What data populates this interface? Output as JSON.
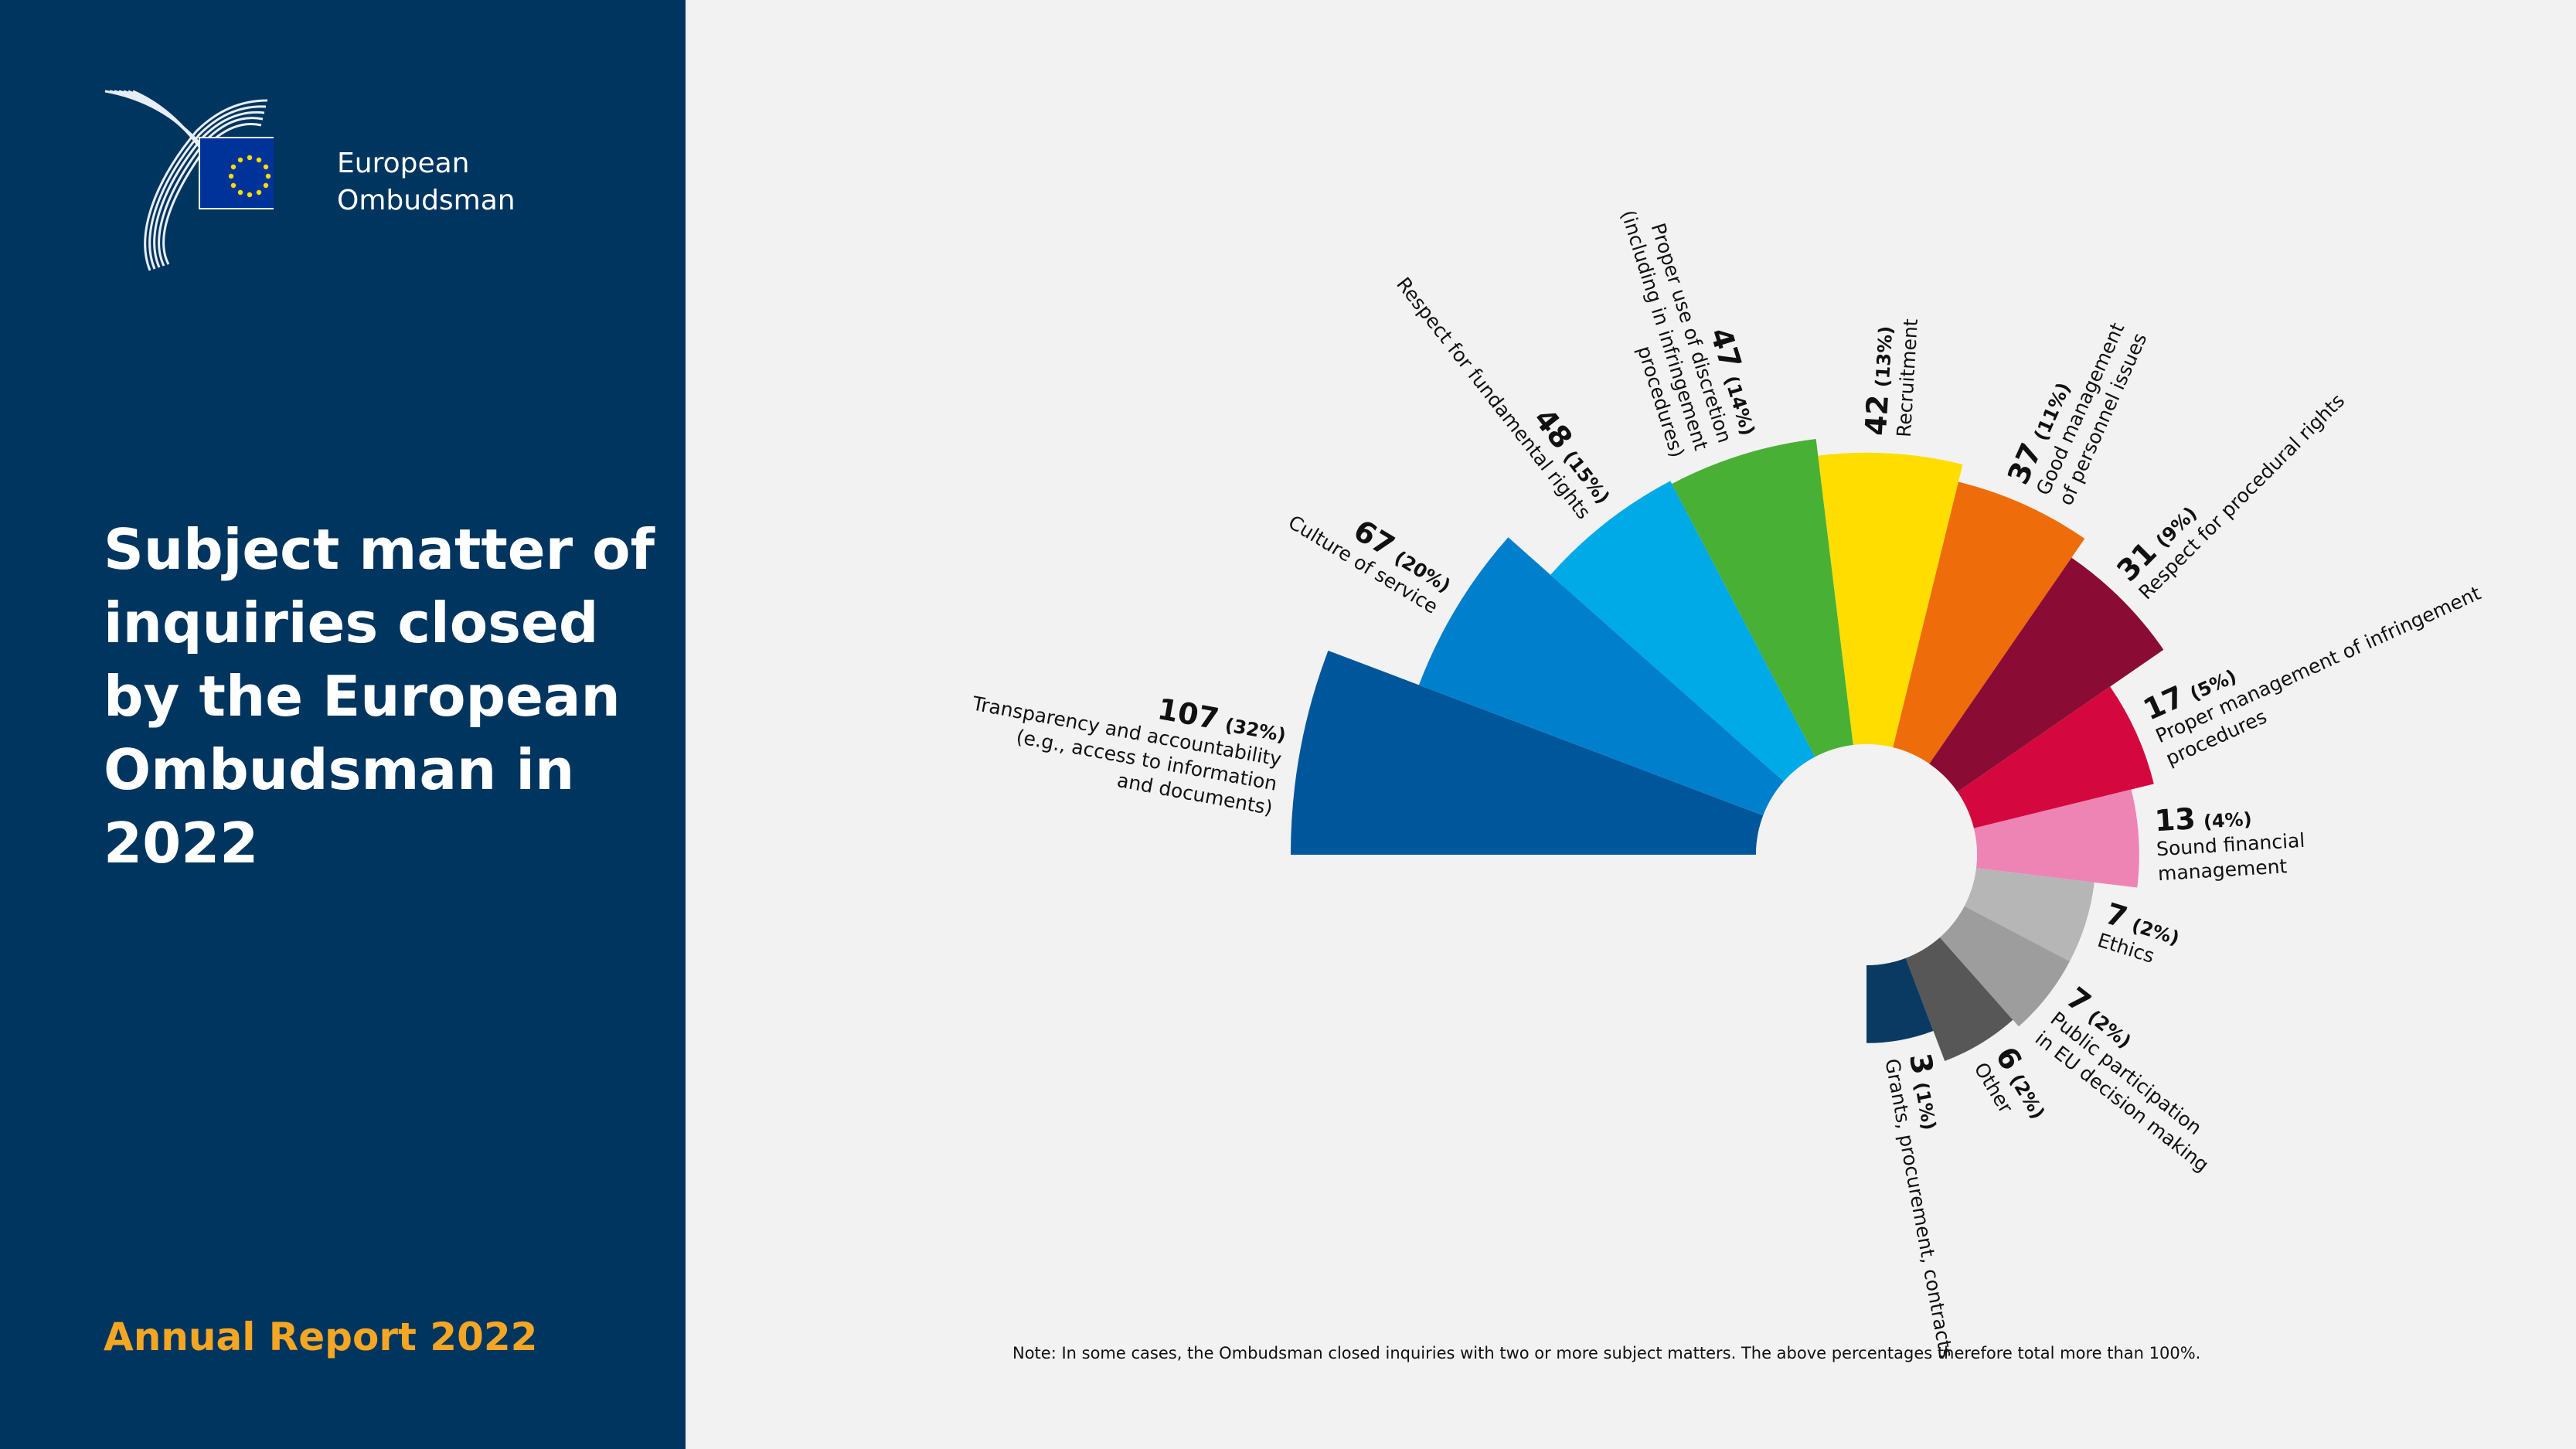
{
  "branding": {
    "org_line1": "European",
    "org_line2": "Ombudsman",
    "footer": "Annual Report 2022"
  },
  "title": "Subject matter of inquiries closed by the European Ombudsman in 2022",
  "note": "Note:  In some cases, the Ombudsman closed inquiries with two or more subject matters. The above percentages therefore total more than 100%.",
  "colors": {
    "sidebar": "#00355f",
    "accent": "#f5a623",
    "background": "#f2f2f2"
  },
  "chart_data": {
    "type": "polar-area",
    "title": "Subject matter of inquiries closed by the European Ombudsman in 2022",
    "total_angle_degrees": 270,
    "start_direction": "left (9 o'clock), clockwise",
    "categories": [
      {
        "value": 107,
        "pct": "(32%)",
        "label": [
          "Transparency and accountability",
          "(e.g., access to information",
          "and documents)"
        ],
        "color": "#00569b"
      },
      {
        "value": 67,
        "pct": "(20%)",
        "label": [
          "Culture of service"
        ],
        "color": "#0080cc"
      },
      {
        "value": 48,
        "pct": "(15%)",
        "label": [
          "Respect for fundamental rights"
        ],
        "color": "#00aae6"
      },
      {
        "value": 47,
        "pct": "(14%)",
        "label": [
          "Proper use of discretion",
          "(including in infringement",
          "procedures)"
        ],
        "color": "#48b035"
      },
      {
        "value": 42,
        "pct": "(13%)",
        "label": [
          "Recruitment"
        ],
        "color": "#ffdd00"
      },
      {
        "value": 37,
        "pct": "(11%)",
        "label": [
          "Good management",
          "of personnel issues"
        ],
        "color": "#ef6c0a"
      },
      {
        "value": 31,
        "pct": "(9%)",
        "label": [
          "Respect for procedural rights"
        ],
        "color": "#8a0c34"
      },
      {
        "value": 17,
        "pct": "(5%)",
        "label": [
          "Proper management of infringement",
          "procedures"
        ],
        "color": "#d5073f"
      },
      {
        "value": 13,
        "pct": "(4%)",
        "label": [
          "Sound financial",
          "management"
        ],
        "color": "#ee84b4"
      },
      {
        "value": 7,
        "pct": "(2%)",
        "label": [
          "Ethics"
        ],
        "color": "#b6b6b6"
      },
      {
        "value": 7,
        "pct": "(2%)",
        "label": [
          "Public participation",
          "in EU decision making"
        ],
        "color": "#9d9d9d"
      },
      {
        "value": 6,
        "pct": "(2%)",
        "label": [
          "Other"
        ],
        "color": "#575757"
      },
      {
        "value": 3,
        "pct": "(1%)",
        "label": [
          "Grants, procurement, contracts"
        ],
        "color": "#0a3a62"
      }
    ]
  }
}
